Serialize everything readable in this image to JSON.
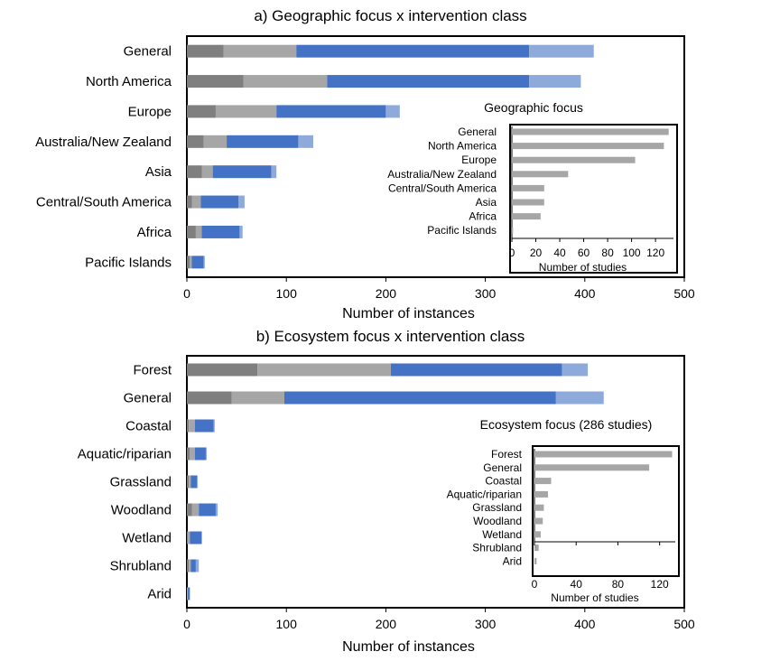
{
  "chart_data": [
    {
      "type": "bar",
      "orientation": "horizontal",
      "stacked": true,
      "title": "a) Geographic focus x intervention class",
      "xlabel": "Number of instances",
      "xlim": [
        0,
        500
      ],
      "xticks": [
        0,
        100,
        200,
        300,
        400,
        500
      ],
      "categories": [
        "General",
        "North America",
        "Europe",
        "Australia/New Zealand",
        "Asia",
        "Central/South America",
        "Africa",
        "Pacific Islands"
      ],
      "series": [
        {
          "color": "#7f7f7f",
          "values": [
            37,
            57,
            29,
            17,
            15,
            5,
            9,
            3
          ]
        },
        {
          "color": "#a6a6a6",
          "values": [
            73,
            84,
            61,
            23,
            11,
            9,
            6,
            2
          ]
        },
        {
          "color": "#4472c4",
          "values": [
            234,
            203,
            110,
            72,
            59,
            38,
            38,
            12
          ]
        },
        {
          "color": "#8eaadb",
          "values": [
            65,
            52,
            14,
            15,
            5,
            6,
            3,
            1
          ]
        }
      ],
      "inset": {
        "type": "bar",
        "orientation": "horizontal",
        "title": "Geographic focus",
        "xlabel": "Number of studies",
        "xlim": [
          0,
          135
        ],
        "xticks": [
          0,
          20,
          40,
          60,
          80,
          100,
          120
        ],
        "categories": [
          "General",
          "North America",
          "Europe",
          "Australia/New Zealand",
          "Central/South America",
          "Asia",
          "Africa",
          "Pacific Islands"
        ],
        "values": [
          131,
          127,
          103,
          47,
          27,
          27,
          24,
          1
        ],
        "color": "#a6a6a6"
      }
    },
    {
      "type": "bar",
      "orientation": "horizontal",
      "stacked": true,
      "title": "b) Ecosystem focus x intervention class",
      "xlabel": "Number of instances",
      "xlim": [
        0,
        500
      ],
      "xticks": [
        0,
        100,
        200,
        300,
        400,
        500
      ],
      "categories": [
        "Forest",
        "General",
        "Coastal",
        "Aquatic/riparian",
        "Grassland",
        "Woodland",
        "Wetland",
        "Shrubland",
        "Arid"
      ],
      "series": [
        {
          "color": "#7f7f7f",
          "values": [
            71,
            45,
            2,
            3,
            2,
            5,
            1,
            2,
            0
          ]
        },
        {
          "color": "#a6a6a6",
          "values": [
            134,
            53,
            6,
            5,
            2,
            7,
            2,
            2,
            1
          ]
        },
        {
          "color": "#4472c4",
          "values": [
            172,
            273,
            19,
            11,
            6,
            17,
            12,
            5,
            2
          ]
        },
        {
          "color": "#8eaadb",
          "values": [
            26,
            48,
            1,
            1,
            1,
            2,
            0,
            3,
            0
          ]
        }
      ],
      "inset": {
        "type": "bar",
        "orientation": "horizontal",
        "title": "Ecosystem focus (286 studies)",
        "xlabel": "Number of studies",
        "xlim": [
          0,
          135
        ],
        "xticks": [
          0,
          40,
          80,
          120
        ],
        "categories": [
          "Forest",
          "General",
          "Coastal",
          "Aquatic/riparian",
          "Grassland",
          "Woodland",
          "Wetland",
          "Shrubland",
          "Arid"
        ],
        "values": [
          132,
          110,
          16,
          13,
          9,
          8,
          6,
          4,
          2
        ],
        "color": "#a6a6a6"
      }
    }
  ]
}
